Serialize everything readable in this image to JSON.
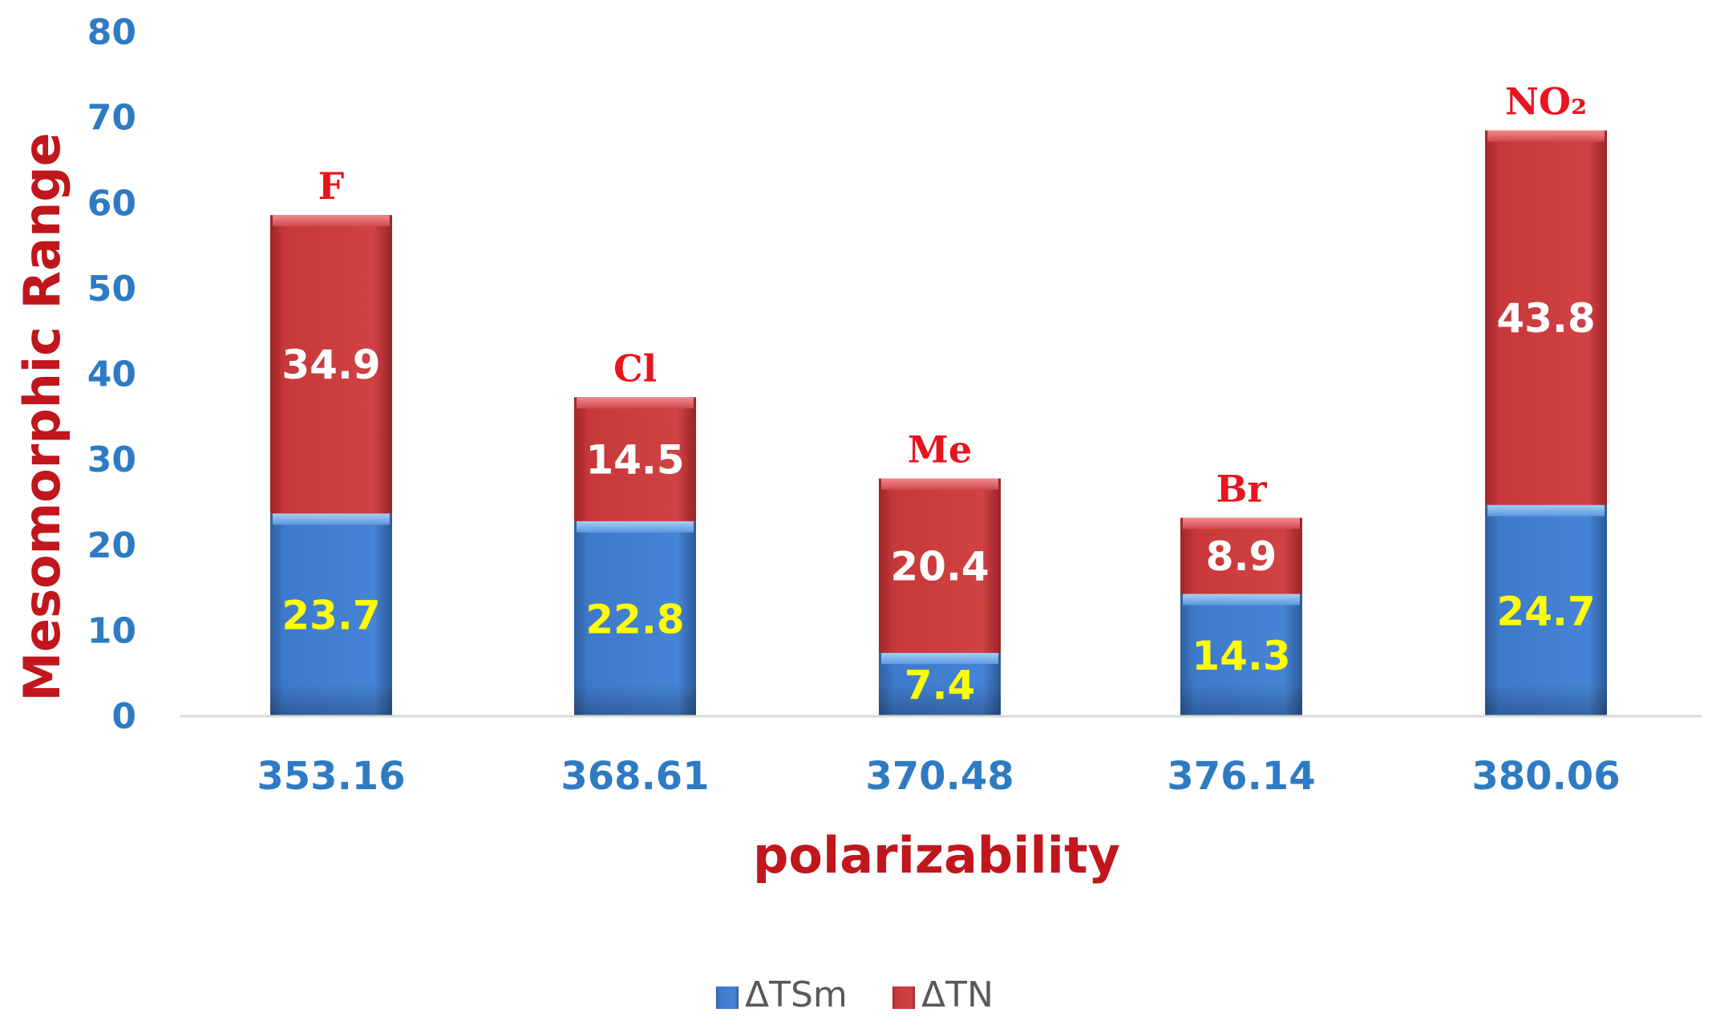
{
  "chart_data": {
    "type": "bar",
    "stacked": true,
    "title": "",
    "xlabel": "polarizability",
    "ylabel": "Mesomorphic Range",
    "ylim": [
      0,
      80
    ],
    "yticks": [
      "0",
      "10",
      "20",
      "30",
      "40",
      "50",
      "60",
      "70",
      "80"
    ],
    "categories": [
      "353.16",
      "368.61",
      "370.48",
      "376.14",
      "380.06"
    ],
    "bar_annotations": [
      "F",
      "Cl",
      "Me",
      "Br",
      "NO₂"
    ],
    "series": [
      {
        "name": "ΔTSm",
        "values": [
          23.7,
          22.8,
          7.4,
          14.3,
          24.7
        ]
      },
      {
        "name": "ΔTN",
        "values": [
          34.9,
          14.5,
          20.4,
          8.9,
          43.8
        ]
      }
    ],
    "data_labels": {
      "series_0": [
        "23.7",
        "22.8",
        "7.4",
        "14.3",
        "24.7"
      ],
      "series_1": [
        "34.9",
        "14.5",
        "20.4",
        "8.9",
        "43.8"
      ]
    },
    "legend_position": "bottom",
    "grid": false,
    "colors": {
      "series_0": "#3d78c6",
      "series_1": "#c8383a",
      "axis_text": "#2e7bc4",
      "title_text": "#c0161c",
      "label_low": "#ffff00",
      "label_high": "#ffffff",
      "annotation": "#e8141e"
    }
  }
}
